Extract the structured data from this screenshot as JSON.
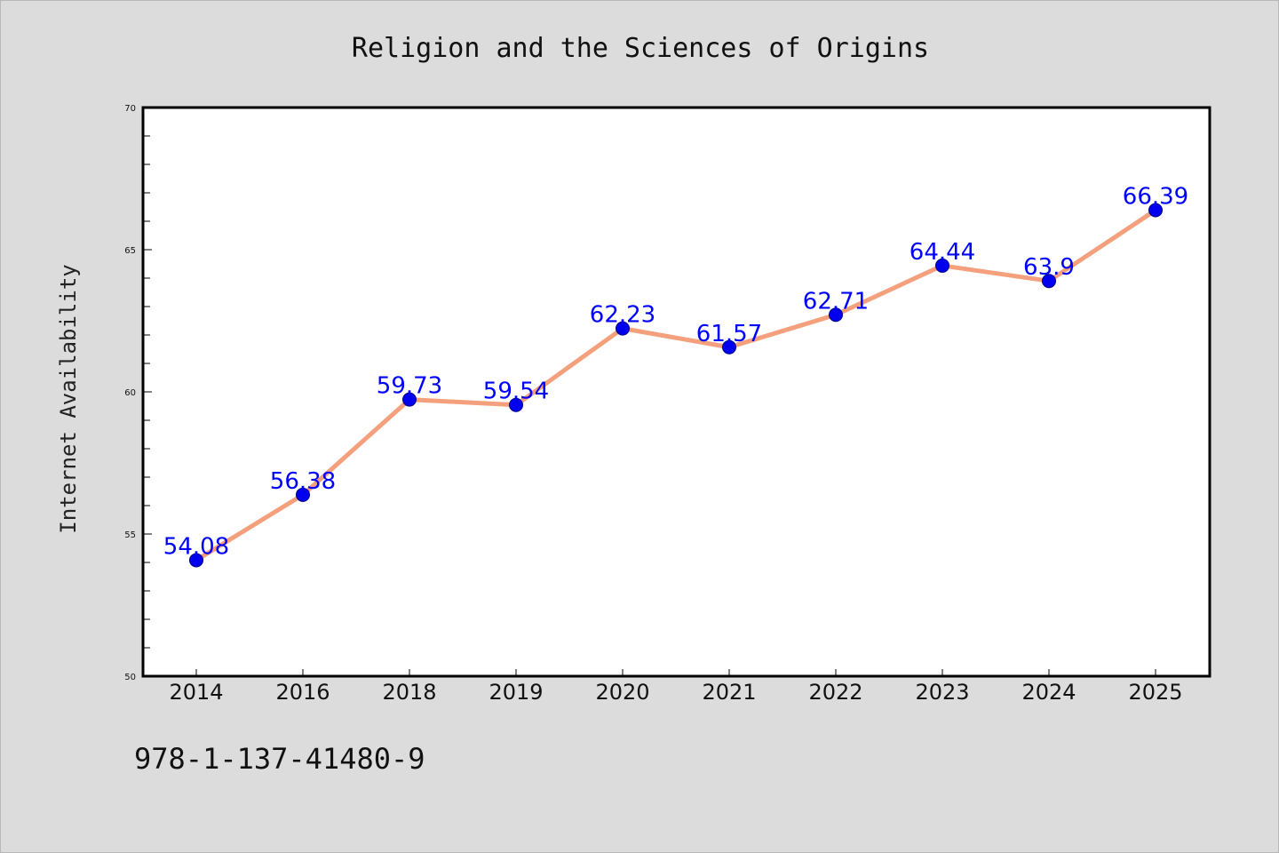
{
  "chart_data": {
    "type": "line",
    "title": "Religion and the Sciences of Origins",
    "xlabel": "",
    "ylabel": "Internet Availability",
    "categories": [
      "2014",
      "2016",
      "2018",
      "2019",
      "2020",
      "2021",
      "2022",
      "2023",
      "2024",
      "2025"
    ],
    "series": [
      {
        "values": [
          54.08,
          56.38,
          59.73,
          59.54,
          62.23,
          61.57,
          62.71,
          64.44,
          63.9,
          66.39
        ],
        "data_labels": [
          "54.08",
          "56.38",
          "59.73",
          "59.54",
          "62.23",
          "61.57",
          "62.71",
          "64.44",
          "63.9",
          "66.39"
        ],
        "line_color": "#f4a07c",
        "marker_color": "#0000ee",
        "label_color": "#0000ff"
      }
    ],
    "ylim": [
      50,
      70
    ],
    "y_ticks": [
      50,
      55,
      60,
      65,
      70
    ],
    "y_tick_labels": [
      "50",
      "55",
      "60",
      "65",
      "70"
    ],
    "grid": false,
    "legend": "none"
  },
  "footer": {
    "isbn": "978-1-137-41480-9"
  },
  "colors": {
    "background": "#dcdcdc",
    "plot_background": "#ffffff",
    "axis": "#000000"
  }
}
